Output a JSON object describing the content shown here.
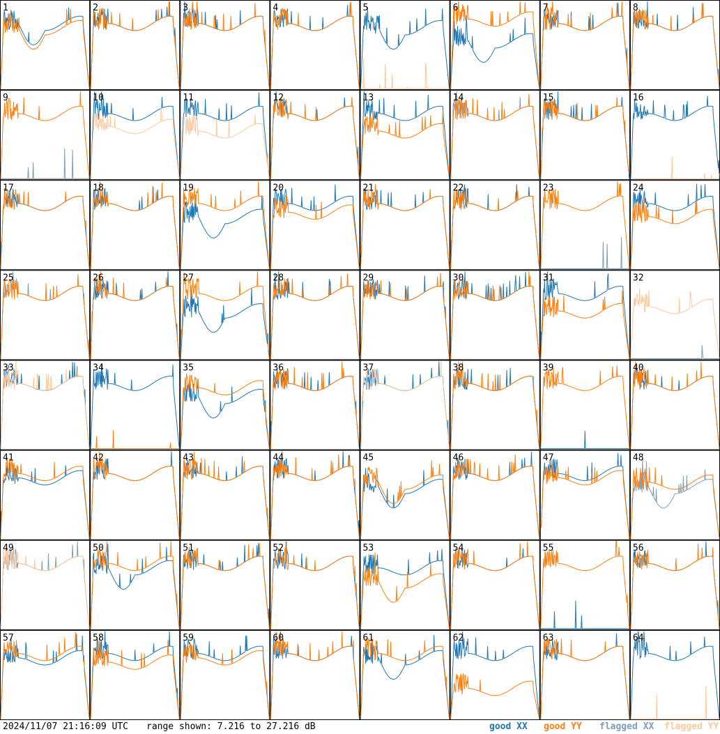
{
  "footer": {
    "timestamp": "2024/11/07 21:16:09 UTC",
    "range_text": "range shown: 7.216 to 27.216 dB"
  },
  "legend": {
    "good_xx": "good XX",
    "good_yy": "good YY",
    "flagged_xx": "flagged XX",
    "flagged_yy": "flagged YY"
  },
  "colors": {
    "good_xx": "#1f77b4",
    "good_yy": "#ff7f0e",
    "flagged_xx": "#7f9fb8",
    "flagged_yy": "#ffc89a"
  },
  "chart_data": {
    "type": "line",
    "layout": "8x8 small multiples",
    "ylim": [
      7.216,
      27.216
    ],
    "yunit": "dB",
    "panels": [
      {
        "label": "1",
        "xx": "good",
        "yy": "good",
        "xx_level": 22,
        "yy_level": 21,
        "xx_shape": "dip",
        "yy_shape": "dip"
      },
      {
        "label": "2",
        "xx": "good",
        "yy": "good",
        "xx_level": 22,
        "yy_level": 22
      },
      {
        "label": "3",
        "xx": "good",
        "yy": "good",
        "xx_level": 22,
        "yy_level": 22
      },
      {
        "label": "4",
        "xx": "good",
        "yy": "good",
        "xx_level": 22,
        "yy_level": 22
      },
      {
        "label": "5",
        "xx": "good",
        "yy": "flagged",
        "xx_level": 21,
        "yy_level": 0,
        "xx_shape": "dip",
        "yy_shape": "dead"
      },
      {
        "label": "6",
        "xx": "good",
        "yy": "good",
        "xx_level": 18,
        "yy_level": 23,
        "xx_shape": "dip"
      },
      {
        "label": "7",
        "xx": "good",
        "yy": "good",
        "xx_level": 22,
        "yy_level": 22
      },
      {
        "label": "8",
        "xx": "good",
        "yy": "good",
        "xx_level": 22,
        "yy_level": 22
      },
      {
        "label": "9",
        "xx": "flagged",
        "yy": "good",
        "xx_level": 0,
        "yy_level": 22,
        "xx_shape": "dead"
      },
      {
        "label": "10",
        "xx": "good",
        "yy": "flagged",
        "xx_level": 22,
        "yy_level": 19
      },
      {
        "label": "11",
        "xx": "good",
        "yy": "flagged",
        "xx_level": 22,
        "yy_level": 18
      },
      {
        "label": "12",
        "xx": "good",
        "yy": "good",
        "xx_level": 22,
        "yy_level": 22
      },
      {
        "label": "13",
        "xx": "good",
        "yy": "good",
        "xx_level": 22,
        "yy_level": 18
      },
      {
        "label": "14",
        "xx": "flagged",
        "yy": "good",
        "xx_level": 22,
        "yy_level": 22
      },
      {
        "label": "15",
        "xx": "good",
        "yy": "good",
        "xx_level": 22,
        "yy_level": 22
      },
      {
        "label": "16",
        "xx": "good",
        "yy": "flagged",
        "xx_level": 22,
        "yy_level": 0,
        "yy_shape": "dead"
      },
      {
        "label": "17",
        "xx": "good",
        "yy": "good",
        "xx_level": 22,
        "yy_level": 22
      },
      {
        "label": "18",
        "xx": "good",
        "yy": "good",
        "xx_level": 22,
        "yy_level": 22
      },
      {
        "label": "19",
        "xx": "good",
        "yy": "good",
        "xx_level": 19,
        "yy_level": 22,
        "xx_shape": "dip"
      },
      {
        "label": "20",
        "xx": "good",
        "yy": "good",
        "xx_level": 22,
        "yy_level": 20
      },
      {
        "label": "21",
        "xx": "good",
        "yy": "good",
        "xx_level": 22,
        "yy_level": 22
      },
      {
        "label": "22",
        "xx": "good",
        "yy": "good",
        "xx_level": 22,
        "yy_level": 22
      },
      {
        "label": "23",
        "xx": "flagged",
        "yy": "good",
        "xx_level": 9,
        "yy_level": 22,
        "xx_shape": "dead"
      },
      {
        "label": "24",
        "xx": "good",
        "yy": "good",
        "xx_level": 22,
        "yy_level": 19
      },
      {
        "label": "25",
        "xx": "flagged",
        "yy": "good",
        "xx_level": 22,
        "yy_level": 22
      },
      {
        "label": "26",
        "xx": "good",
        "yy": "good",
        "xx_level": 22,
        "yy_level": 22
      },
      {
        "label": "27",
        "xx": "good",
        "yy": "good",
        "xx_level": 18,
        "yy_level": 22,
        "xx_shape": "dip"
      },
      {
        "label": "28",
        "xx": "good",
        "yy": "good",
        "xx_level": 22,
        "yy_level": 22
      },
      {
        "label": "29",
        "xx": "good",
        "yy": "good",
        "xx_level": 22,
        "yy_level": 22
      },
      {
        "label": "30",
        "xx": "good",
        "yy": "good",
        "xx_level": 22,
        "yy_level": 22
      },
      {
        "label": "31",
        "xx": "good",
        "yy": "good",
        "xx_level": 22,
        "yy_level": 18
      },
      {
        "label": "32",
        "xx": "flagged",
        "yy": "flagged",
        "xx_level": 0,
        "yy_level": 19,
        "xx_shape": "dead"
      },
      {
        "label": "33",
        "xx": "good",
        "yy": "flagged",
        "xx_level": 22,
        "yy_level": 22
      },
      {
        "label": "34",
        "xx": "good",
        "yy": "good",
        "xx_level": 22,
        "yy_level": 0,
        "yy_shape": "dead"
      },
      {
        "label": "35",
        "xx": "good",
        "yy": "good",
        "xx_level": 19,
        "yy_level": 21,
        "xx_shape": "dip"
      },
      {
        "label": "36",
        "xx": "good",
        "yy": "good",
        "xx_level": 22,
        "yy_level": 22
      },
      {
        "label": "37",
        "xx": "good",
        "yy": "flagged",
        "xx_level": 22,
        "yy_level": 22
      },
      {
        "label": "38",
        "xx": "good",
        "yy": "good",
        "xx_level": 22,
        "yy_level": 22
      },
      {
        "label": "39",
        "xx": "good",
        "yy": "good",
        "xx_level": 0,
        "yy_level": 22,
        "xx_shape": "dead"
      },
      {
        "label": "40",
        "xx": "good",
        "yy": "good",
        "xx_level": 22,
        "yy_level": 22
      },
      {
        "label": "41",
        "xx": "good",
        "yy": "good",
        "xx_level": 21,
        "yy_level": 22
      },
      {
        "label": "42",
        "xx": "good",
        "yy": "good",
        "xx_level": 22,
        "yy_level": 22
      },
      {
        "label": "43",
        "xx": "good",
        "yy": "good",
        "xx_level": 22,
        "yy_level": 22
      },
      {
        "label": "44",
        "xx": "good",
        "yy": "good",
        "xx_level": 22,
        "yy_level": 22
      },
      {
        "label": "45",
        "xx": "good",
        "yy": "good",
        "xx_level": 19,
        "yy_level": 20,
        "xx_shape": "dip",
        "yy_shape": "dip"
      },
      {
        "label": "46",
        "xx": "good",
        "yy": "good",
        "xx_level": 22,
        "yy_level": 22
      },
      {
        "label": "47",
        "xx": "good",
        "yy": "good",
        "xx_level": 22,
        "yy_level": 21
      },
      {
        "label": "48",
        "xx": "flagged",
        "yy": "good",
        "xx_level": 19,
        "yy_level": 20,
        "xx_shape": "dip"
      },
      {
        "label": "49",
        "xx": "flagged",
        "yy": "flagged",
        "xx_level": 22,
        "yy_level": 22
      },
      {
        "label": "50",
        "xx": "good",
        "yy": "good",
        "xx_level": 21,
        "yy_level": 22,
        "xx_shape": "dip"
      },
      {
        "label": "51",
        "xx": "good",
        "yy": "good",
        "xx_level": 22,
        "yy_level": 22
      },
      {
        "label": "52",
        "xx": "good",
        "yy": "good",
        "xx_level": 22,
        "yy_level": 22
      },
      {
        "label": "53",
        "xx": "good",
        "yy": "good",
        "xx_level": 21,
        "yy_level": 18,
        "yy_shape": "dip"
      },
      {
        "label": "54",
        "xx": "good",
        "yy": "good",
        "xx_level": 22,
        "yy_level": 22
      },
      {
        "label": "55",
        "xx": "good",
        "yy": "good",
        "xx_level": 9,
        "yy_level": 22,
        "xx_shape": "dead"
      },
      {
        "label": "56",
        "xx": "good",
        "yy": "good",
        "xx_level": 22,
        "yy_level": 22
      },
      {
        "label": "57",
        "xx": "good",
        "yy": "good",
        "xx_level": 21,
        "yy_level": 22
      },
      {
        "label": "58",
        "xx": "good",
        "yy": "good",
        "xx_level": 22,
        "yy_level": 20
      },
      {
        "label": "59",
        "xx": "good",
        "yy": "good",
        "xx_level": 22,
        "yy_level": 21
      },
      {
        "label": "60",
        "xx": "good",
        "yy": "good",
        "xx_level": 22,
        "yy_level": 22
      },
      {
        "label": "61",
        "xx": "good",
        "yy": "good",
        "xx_level": 21,
        "yy_level": 22,
        "xx_shape": "dip"
      },
      {
        "label": "62",
        "xx": "good",
        "yy": "good",
        "xx_level": 22,
        "yy_level": 14
      },
      {
        "label": "63",
        "xx": "good",
        "yy": "good",
        "xx_level": 22,
        "yy_level": 22
      },
      {
        "label": "64",
        "xx": "good",
        "yy": "flagged",
        "xx_level": 22,
        "yy_level": 0,
        "yy_shape": "dead"
      }
    ]
  }
}
